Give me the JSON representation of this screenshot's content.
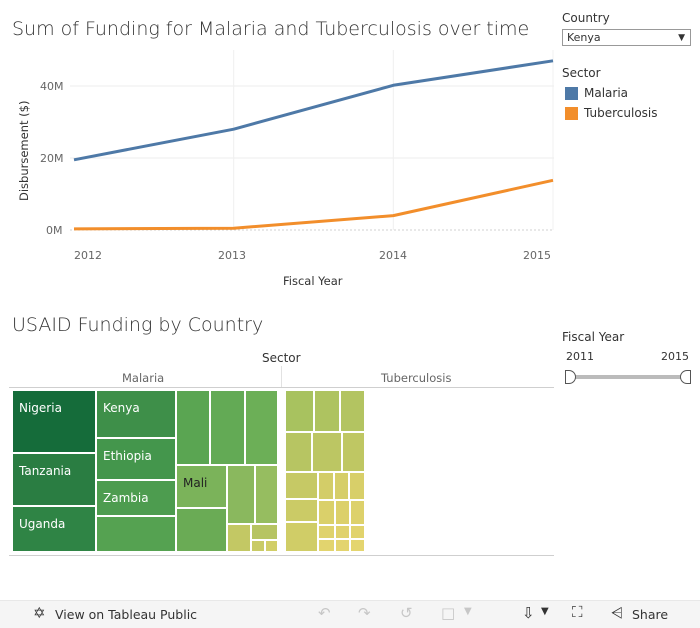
{
  "line_chart": {
    "title": "Sum of Funding for Malaria and Tuberculosis over time",
    "y_axis_label": "Disbursement ($)",
    "x_axis_label": "Fiscal Year",
    "y_ticks": [
      "40M",
      "20M",
      "0M"
    ],
    "x_ticks": [
      "2012",
      "2013",
      "2014",
      "2015"
    ]
  },
  "chart_data": {
    "type": "line",
    "title": "Sum of Funding for Malaria and Tuberculosis over time",
    "xlabel": "Fiscal Year",
    "ylabel": "Disbursement ($)",
    "x": [
      2012,
      2013,
      2014,
      2015
    ],
    "series": [
      {
        "name": "Malaria",
        "values": [
          19500000,
          28000000,
          40200000,
          47000000
        ],
        "color": "#4e79a7"
      },
      {
        "name": "Tuberculosis",
        "values": [
          300000,
          500000,
          4000000,
          13800000
        ],
        "color": "#f28e2b"
      }
    ],
    "ylim": [
      0,
      50000000
    ],
    "grid": true,
    "legend": "right"
  },
  "filters": {
    "country_label": "Country",
    "country_value": "Kenya",
    "sector_legend_title": "Sector",
    "sector_items": [
      {
        "label": "Malaria",
        "color": "#4e79a7"
      },
      {
        "label": "Tuberculosis",
        "color": "#f28e2b"
      }
    ],
    "fiscal_year_label": "Fiscal Year",
    "fiscal_year_min": "2011",
    "fiscal_year_max": "2015"
  },
  "treemap": {
    "title": "USAID Funding by Country",
    "header": "Sector",
    "columns": [
      "Malaria",
      "Tuberculosis"
    ],
    "labels": {
      "nigeria": "Nigeria",
      "tanzania": "Tanzania",
      "uganda": "Uganda",
      "kenya": "Kenya",
      "ethiopia": "Ethiopia",
      "zambia": "Zambia",
      "mali": "Mali"
    }
  },
  "toolbar": {
    "view_label": "View on Tableau Public",
    "share_label": "Share"
  }
}
